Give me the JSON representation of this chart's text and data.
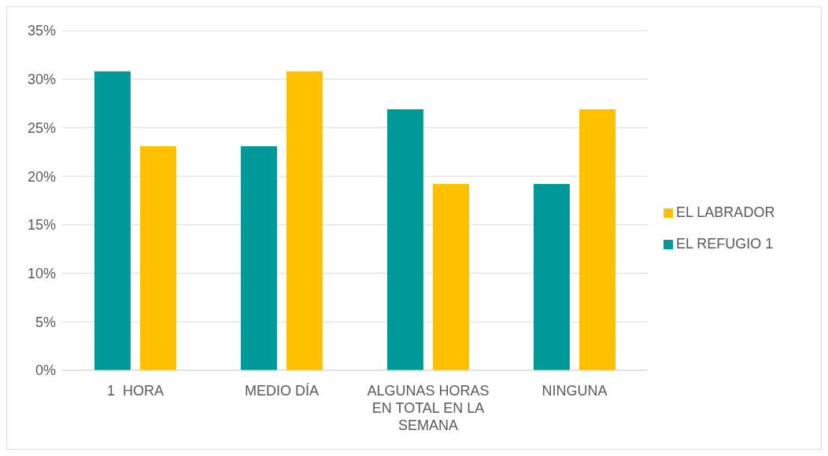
{
  "chart_data": {
    "type": "bar",
    "categories": [
      "1  HORA",
      "MEDIO DÍA",
      "ALGUNAS HORAS EN TOTAL EN LA SEMANA",
      "NINGUNA"
    ],
    "series": [
      {
        "name": "EL REFUGIO 1",
        "color": "#009999",
        "values": [
          30.8,
          23.1,
          26.9,
          19.2
        ]
      },
      {
        "name": "EL LABRADOR",
        "color": "#ffc000",
        "values": [
          23.1,
          30.8,
          19.2,
          26.9
        ]
      }
    ],
    "ylim": [
      0,
      35
    ],
    "yticks": [
      {
        "value": 0,
        "label": "0%"
      },
      {
        "value": 5,
        "label": "5%"
      },
      {
        "value": 10,
        "label": "10%"
      },
      {
        "value": 15,
        "label": "15%"
      },
      {
        "value": 20,
        "label": "20%"
      },
      {
        "value": 25,
        "label": "25%"
      },
      {
        "value": 30,
        "label": "30%"
      },
      {
        "value": 35,
        "label": "35%"
      }
    ],
    "grid": "y",
    "legend": "right"
  }
}
